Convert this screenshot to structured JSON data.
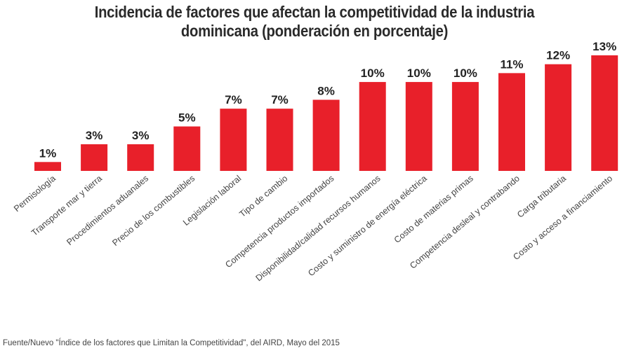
{
  "chart_data": {
    "type": "bar",
    "title": [
      "Incidencia de factores que afectan la competitividad de la industria",
      "dominicana (ponderación en porcentaje)"
    ],
    "categories": [
      "Permisología",
      "Transporte mar y tierra",
      "Procedimientos aduanales",
      "Precio de los combustibles",
      "Legislación laboral",
      "Tipo de cambio",
      "Competencia productos importados",
      "Disponibilidad/calidad recursos humanos",
      "Costo y suministro de energía eléctrica",
      "Costo de materias primas",
      "Competencia desleal y contrabando",
      "Carga tributaria",
      "Costo y acceso a financiamiento"
    ],
    "values": [
      1,
      3,
      3,
      5,
      7,
      7,
      8,
      10,
      10,
      10,
      11,
      12,
      13
    ],
    "data_labels": [
      "1%",
      "3%",
      "3%",
      "5%",
      "7%",
      "7%",
      "8%",
      "10%",
      "10%",
      "10%",
      "11%",
      "12%",
      "13%"
    ],
    "bar_color": "#e8202a",
    "ylim": [
      0,
      13
    ],
    "grid": false,
    "source": "Fuente/Nuevo \"Índice de los factores que Limitan la Competitividad\", del AIRD, Mayo del 2015"
  }
}
